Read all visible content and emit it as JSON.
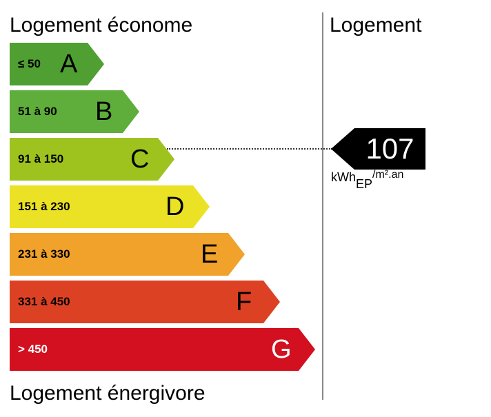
{
  "labels": {
    "top": "Logement économe",
    "bottom": "Logement énergivore",
    "right": "Logement"
  },
  "bands": [
    {
      "range": "≤ 50",
      "letter": "A",
      "color": "#4f9f32",
      "text_color": "#000000"
    },
    {
      "range": "51 à 90",
      "letter": "B",
      "color": "#5fad3a",
      "text_color": "#000000"
    },
    {
      "range": "91 à 150",
      "letter": "C",
      "color": "#9ec31f",
      "text_color": "#000000"
    },
    {
      "range": "151 à 230",
      "letter": "D",
      "color": "#ece225",
      "text_color": "#000000"
    },
    {
      "range": "231 à 330",
      "letter": "E",
      "color": "#f0a22b",
      "text_color": "#000000"
    },
    {
      "range": "331 à 450",
      "letter": "F",
      "color": "#dd4124",
      "text_color": "#000000"
    },
    {
      "range": "> 450",
      "letter": "G",
      "color": "#d2101f",
      "text_color": "#ffffff"
    }
  ],
  "indicator": {
    "value": "107",
    "band": "C",
    "color": "#000000",
    "unit_main": "kWh",
    "unit_sub": "EP",
    "unit_rest": "/m².an"
  }
}
